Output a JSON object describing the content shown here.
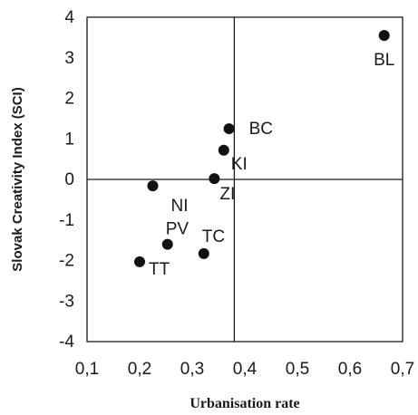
{
  "chart_data": {
    "type": "scatter",
    "xlabel": "Urbanisation rate",
    "ylabel": "Slovak Creativity Index (SCI)",
    "xlim": [
      0.1,
      0.7
    ],
    "ylim": [
      -4,
      4
    ],
    "x_ticks": [
      "0,1",
      "0,2",
      "0,3",
      "0,4",
      "0,5",
      "0,6",
      "0,7"
    ],
    "y_ticks": [
      "4",
      "3",
      "2",
      "1",
      "0",
      "-1",
      "-2",
      "-3",
      "-4"
    ],
    "quadrant_lines": {
      "x": 0.38,
      "y": 0
    },
    "grid": false,
    "marker_color": "#111111",
    "points": [
      {
        "label": "BL",
        "x": 0.665,
        "y": 3.55
      },
      {
        "label": "BC",
        "x": 0.37,
        "y": 1.25
      },
      {
        "label": "KI",
        "x": 0.36,
        "y": 0.72
      },
      {
        "label": "ZI",
        "x": 0.342,
        "y": 0.02
      },
      {
        "label": "NI",
        "x": 0.225,
        "y": -0.16
      },
      {
        "label": "PV",
        "x": 0.253,
        "y": -1.6
      },
      {
        "label": "TC",
        "x": 0.322,
        "y": -1.83
      },
      {
        "label": "TT",
        "x": 0.2,
        "y": -2.03
      }
    ]
  }
}
